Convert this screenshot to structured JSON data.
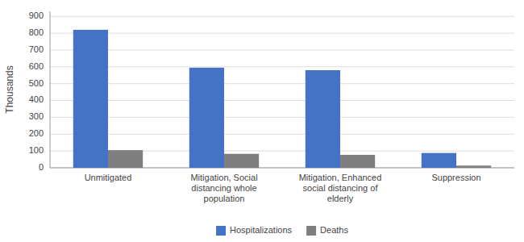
{
  "chart_data": {
    "type": "bar",
    "categories": [
      "Unmitigated",
      "Mitigation, Social\ndistancing whole\npopulation",
      "Mitigation, Enhanced\nsocial distancing of\nelderly",
      "Suppression"
    ],
    "series": [
      {
        "name": "Hospitalizations",
        "color": "#4472C4",
        "values": [
          820,
          595,
          580,
          88
        ]
      },
      {
        "name": "Deaths",
        "color": "#7F7F7F",
        "values": [
          105,
          83,
          77,
          13
        ]
      }
    ],
    "ylabel": "Thousands",
    "ylim": [
      0,
      930
    ],
    "yticks": [
      0,
      100,
      200,
      300,
      400,
      500,
      600,
      700,
      800,
      900
    ],
    "grid": true,
    "legend": "bottom"
  }
}
